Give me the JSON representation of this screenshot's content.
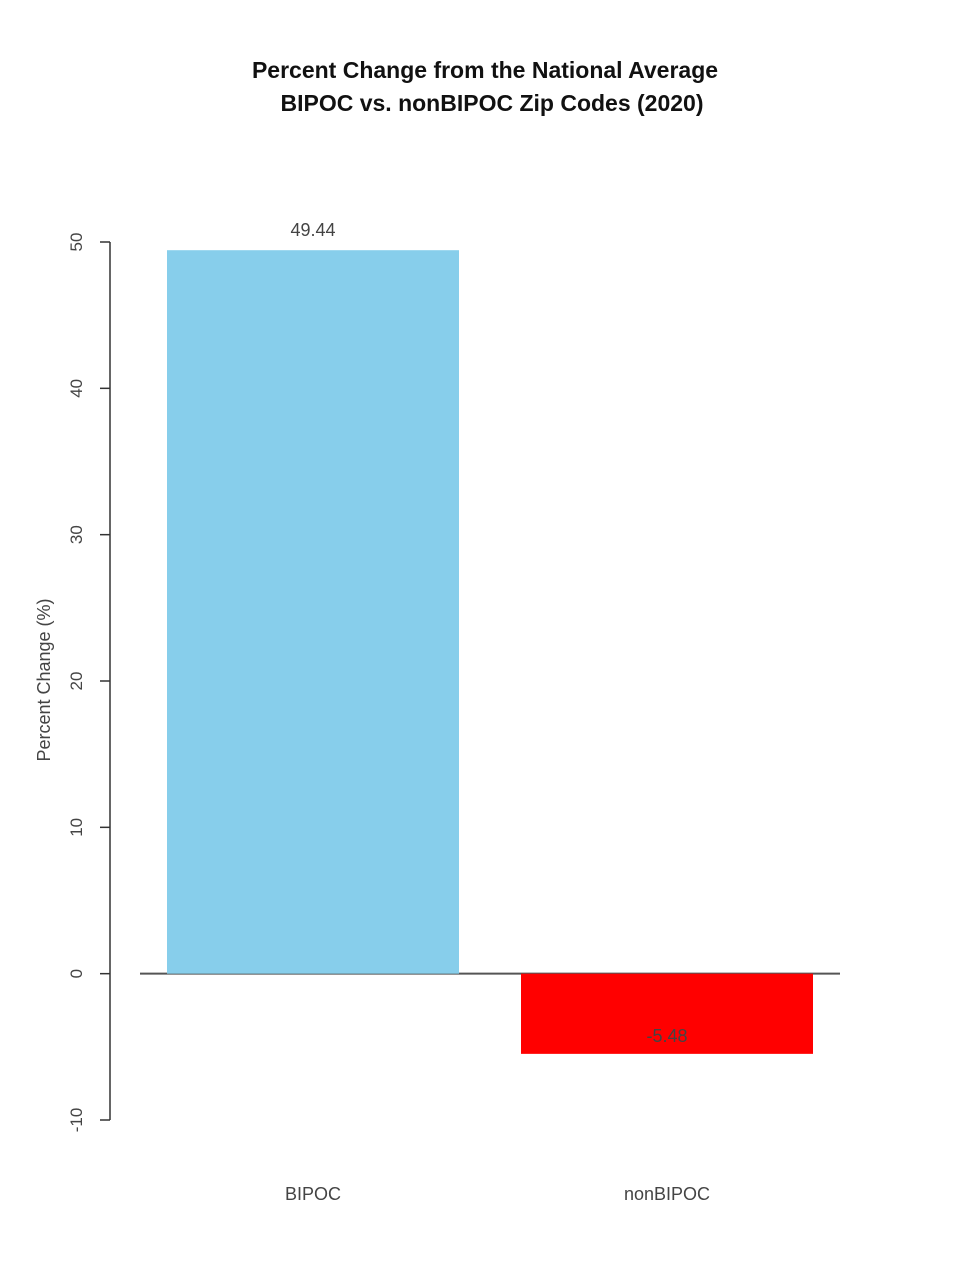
{
  "chart_data": {
    "type": "bar",
    "title": "Percent Change from the National Average",
    "subtitle": "BIPOC vs. nonBIPOC Zip Codes (2020)",
    "xlabel": "",
    "ylabel": "Percent Change (%)",
    "ylim": [
      -10,
      50
    ],
    "yticks": [
      -10,
      0,
      10,
      20,
      30,
      40,
      50
    ],
    "categories": [
      "BIPOC",
      "nonBIPOC"
    ],
    "values": [
      49.44,
      -5.48
    ],
    "data_labels": [
      "49.44",
      "-5.48"
    ],
    "colors": [
      "#87ceeb",
      "#ff0000"
    ],
    "grid": false,
    "legend": "none"
  }
}
